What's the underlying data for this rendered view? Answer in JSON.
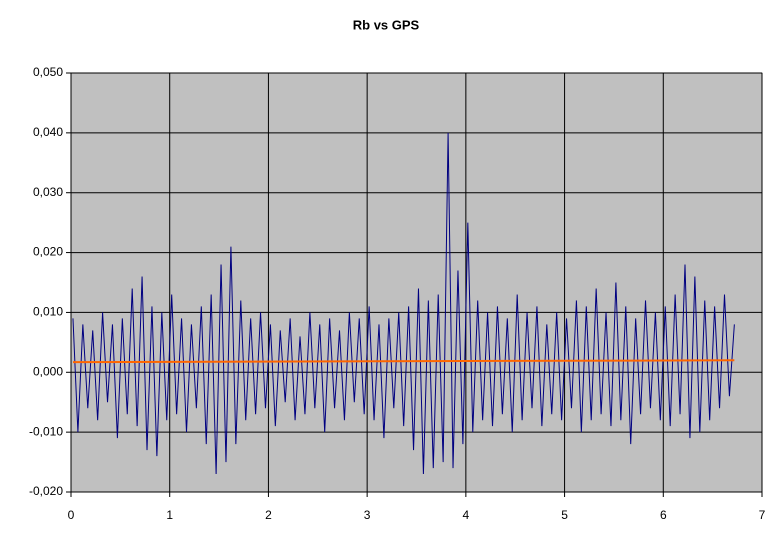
{
  "chart_data": {
    "type": "line",
    "title": "Rb vs GPS",
    "xlim": [
      0,
      7
    ],
    "xticks": [
      0,
      1,
      2,
      3,
      4,
      5,
      6,
      7
    ],
    "ylim": [
      -0.02,
      0.05
    ],
    "yticks": [
      {
        "value": -0.02,
        "label": "-0,020"
      },
      {
        "value": -0.01,
        "label": "-0,010"
      },
      {
        "value": 0,
        "label": "0,000"
      },
      {
        "value": 0.01,
        "label": "0,010"
      },
      {
        "value": 0.02,
        "label": "0,020"
      },
      {
        "value": 0.03,
        "label": "0,030"
      },
      {
        "value": 0.04,
        "label": "0,040"
      },
      {
        "value": 0.05,
        "label": "0,050"
      }
    ],
    "grid": true,
    "background": "#c0c0c0",
    "series": [
      {
        "color": "#000080",
        "x": [
          0.02,
          0.07,
          0.12,
          0.17,
          0.22,
          0.27,
          0.32,
          0.37,
          0.42,
          0.47,
          0.52,
          0.57,
          0.62,
          0.67,
          0.72,
          0.77,
          0.82,
          0.87,
          0.92,
          0.97,
          1.02,
          1.07,
          1.12,
          1.17,
          1.22,
          1.27,
          1.32,
          1.37,
          1.42,
          1.47,
          1.52,
          1.57,
          1.62,
          1.67,
          1.72,
          1.77,
          1.82,
          1.87,
          1.92,
          1.97,
          2.02,
          2.07,
          2.12,
          2.17,
          2.22,
          2.27,
          2.32,
          2.37,
          2.42,
          2.47,
          2.52,
          2.57,
          2.62,
          2.67,
          2.72,
          2.77,
          2.82,
          2.87,
          2.92,
          2.97,
          3.02,
          3.07,
          3.12,
          3.17,
          3.22,
          3.27,
          3.32,
          3.37,
          3.42,
          3.47,
          3.52,
          3.57,
          3.62,
          3.67,
          3.72,
          3.77,
          3.82,
          3.87,
          3.92,
          3.97,
          4.02,
          4.07,
          4.12,
          4.17,
          4.22,
          4.27,
          4.32,
          4.37,
          4.42,
          4.47,
          4.52,
          4.57,
          4.62,
          4.67,
          4.72,
          4.77,
          4.82,
          4.87,
          4.92,
          4.97,
          5.02,
          5.07,
          5.12,
          5.17,
          5.22,
          5.27,
          5.32,
          5.37,
          5.42,
          5.47,
          5.52,
          5.57,
          5.62,
          5.67,
          5.72,
          5.77,
          5.82,
          5.87,
          5.92,
          5.97,
          6.02,
          6.07,
          6.12,
          6.17,
          6.22,
          6.27,
          6.32,
          6.37,
          6.42,
          6.47,
          6.52,
          6.57,
          6.62,
          6.67,
          6.72
        ],
        "values": [
          0.009,
          -0.01,
          0.008,
          -0.006,
          0.007,
          -0.008,
          0.01,
          -0.005,
          0.008,
          -0.011,
          0.009,
          -0.007,
          0.014,
          -0.009,
          0.016,
          -0.013,
          0.011,
          -0.014,
          0.01,
          -0.008,
          0.013,
          -0.007,
          0.009,
          -0.01,
          0.008,
          -0.006,
          0.011,
          -0.012,
          0.013,
          -0.017,
          0.018,
          -0.015,
          0.021,
          -0.012,
          0.012,
          -0.008,
          0.009,
          -0.007,
          0.01,
          -0.006,
          0.008,
          -0.009,
          0.007,
          -0.005,
          0.009,
          -0.008,
          0.006,
          -0.007,
          0.01,
          -0.006,
          0.008,
          -0.01,
          0.009,
          -0.006,
          0.007,
          -0.008,
          0.01,
          -0.005,
          0.009,
          -0.007,
          0.011,
          -0.008,
          0.008,
          -0.011,
          0.009,
          -0.006,
          0.01,
          -0.009,
          0.011,
          -0.013,
          0.014,
          -0.017,
          0.012,
          -0.016,
          0.013,
          -0.015,
          0.04,
          -0.016,
          0.017,
          -0.012,
          0.025,
          -0.01,
          0.012,
          -0.008,
          0.01,
          -0.009,
          0.011,
          -0.007,
          0.009,
          -0.01,
          0.013,
          -0.008,
          0.01,
          -0.006,
          0.011,
          -0.009,
          0.008,
          -0.007,
          0.01,
          -0.008,
          0.009,
          -0.006,
          0.012,
          -0.01,
          0.011,
          -0.008,
          0.014,
          -0.007,
          0.01,
          -0.009,
          0.015,
          -0.008,
          0.011,
          -0.012,
          0.009,
          -0.007,
          0.012,
          -0.006,
          0.01,
          -0.008,
          0.011,
          -0.009,
          0.013,
          -0.007,
          0.018,
          -0.011,
          0.016,
          -0.01,
          0.012,
          -0.008,
          0.011,
          -0.006,
          0.013,
          -0.004,
          0.008
        ]
      },
      {
        "color": "#ff6600",
        "x": [
          0.02,
          6.72
        ],
        "values": [
          0.0017,
          0.002
        ]
      }
    ]
  }
}
